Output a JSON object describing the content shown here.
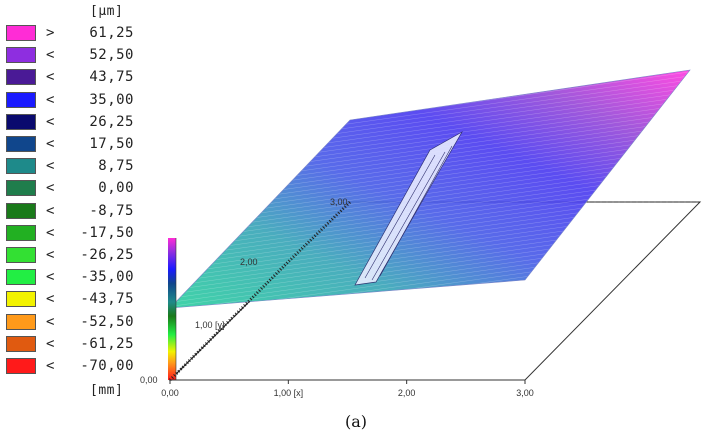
{
  "legend": {
    "unit_top": "[µm]",
    "unit_bottom": "[mm]",
    "entries": [
      {
        "op": ">",
        "value": "61,25",
        "color": "#ff2cd6"
      },
      {
        "op": "<",
        "value": "52,50",
        "color": "#8e2ee0"
      },
      {
        "op": "<",
        "value": "43,75",
        "color": "#4a1a96"
      },
      {
        "op": "<",
        "value": "35,00",
        "color": "#1a1aff"
      },
      {
        "op": "<",
        "value": "26,25",
        "color": "#0a0a6e"
      },
      {
        "op": "<",
        "value": "17,50",
        "color": "#10468c"
      },
      {
        "op": "<",
        "value": "8,75",
        "color": "#1e8a8a"
      },
      {
        "op": "<",
        "value": "0,00",
        "color": "#1f7d4c"
      },
      {
        "op": "<",
        "value": "-8,75",
        "color": "#1a7a1a"
      },
      {
        "op": "<",
        "value": "-17,50",
        "color": "#22b022"
      },
      {
        "op": "<",
        "value": "-26,25",
        "color": "#33e033"
      },
      {
        "op": "<",
        "value": "-35,00",
        "color": "#22ee44"
      },
      {
        "op": "<",
        "value": "-43,75",
        "color": "#f2f200"
      },
      {
        "op": "<",
        "value": "-52,50",
        "color": "#ff9a1a"
      },
      {
        "op": "<",
        "value": "-61,25",
        "color": "#e05a10"
      },
      {
        "op": "<",
        "value": "-70,00",
        "color": "#ff1a1a"
      }
    ]
  },
  "chart_data": {
    "type": "3d-surface",
    "x_axis": {
      "label": "[x]",
      "ticks": [
        "0,00",
        "1,00",
        "2,00",
        "3,00"
      ],
      "range": [
        0,
        3
      ]
    },
    "y_axis": {
      "label": "[y]",
      "ticks": [
        "1,00",
        "2,00",
        "3,00"
      ],
      "range": [
        0,
        3
      ]
    },
    "z_unit": "[µm]",
    "xy_unit": "[mm]",
    "origin_label": "0,00"
  },
  "caption": "(a)"
}
